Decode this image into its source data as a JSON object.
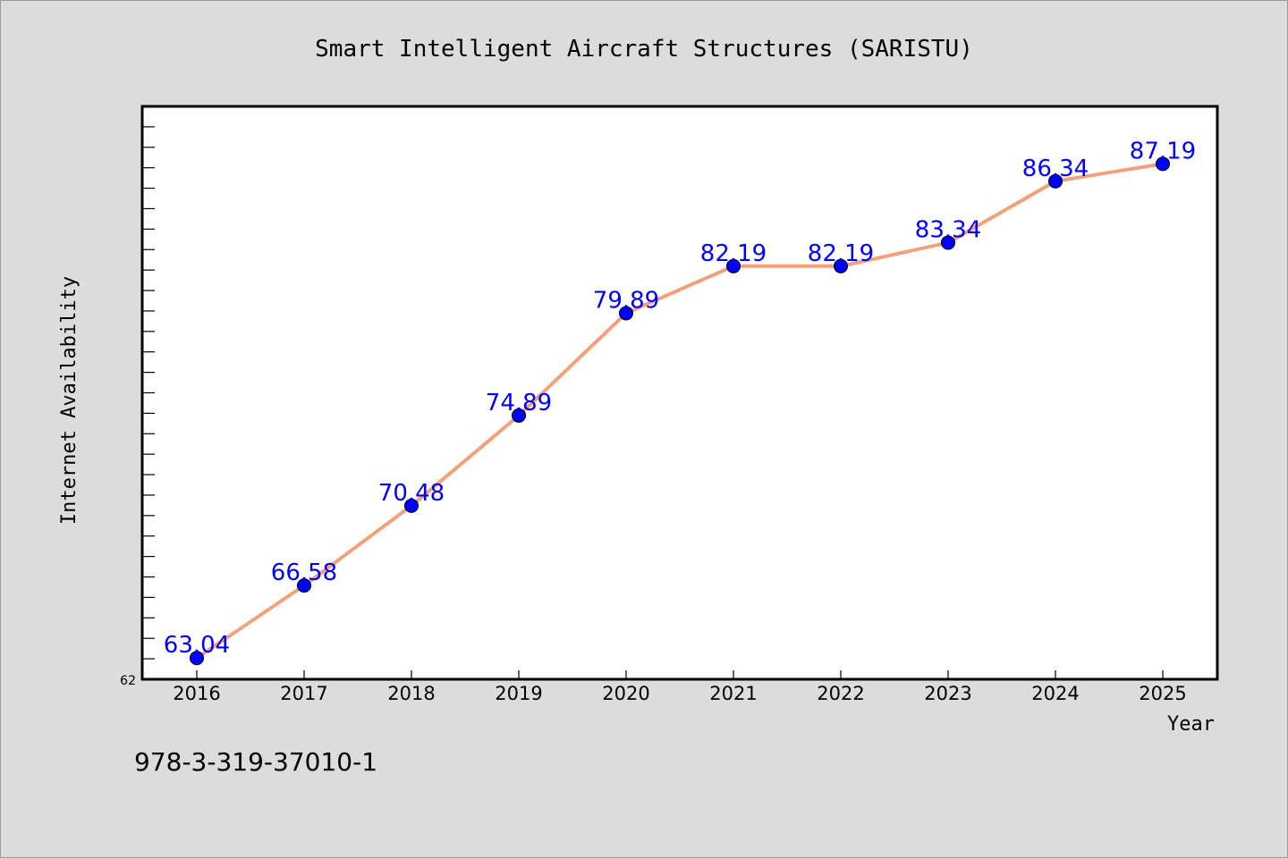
{
  "chart_data": {
    "type": "line",
    "title": "Smart Intelligent Aircraft Structures (SARISTU)",
    "xlabel": "Year",
    "ylabel": "Internet Availability",
    "categories": [
      "2016",
      "2017",
      "2018",
      "2019",
      "2020",
      "2021",
      "2022",
      "2023",
      "2024",
      "2025"
    ],
    "series": [
      {
        "values": [
          63.04,
          66.58,
          70.48,
          74.89,
          79.89,
          82.19,
          82.19,
          83.34,
          86.34,
          87.19
        ],
        "labels": [
          "63.04",
          "66.58",
          "70.48",
          "74.89",
          "79.89",
          "82.19",
          "82.19",
          "83.34",
          "86.34",
          "87.19"
        ]
      }
    ],
    "ylim": [
      62,
      90
    ],
    "ytick_labels": [
      "62"
    ],
    "grid": false,
    "colors": {
      "line": "#f4a07a",
      "marker": "#0000ff",
      "label": "#0000ff"
    }
  },
  "footer": {
    "isbn": "978-3-319-37010-1"
  }
}
